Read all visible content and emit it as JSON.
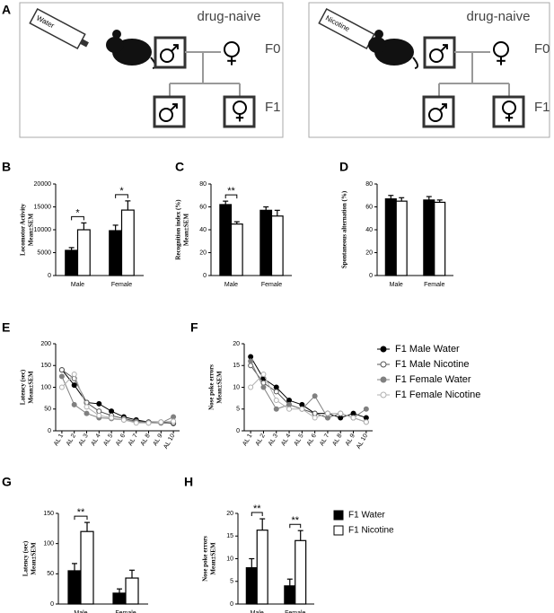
{
  "diagram": {
    "panel": "A",
    "groups": [
      {
        "bottle": "Water",
        "label": "drug-naive",
        "f0": "F0",
        "f1": "F1"
      },
      {
        "bottle": "Nicotine",
        "label": "drug-naive",
        "f0": "F0",
        "f1": "F1"
      }
    ]
  },
  "chart_data": [
    {
      "panel": "B",
      "type": "bar",
      "ylabel": [
        "Locomotor Activity",
        "Mean±SEM"
      ],
      "categories": [
        "Male",
        "Female"
      ],
      "series": [
        {
          "name": "F1 Water",
          "color": "#000000",
          "values": [
            5500,
            9800
          ],
          "errors": [
            600,
            1200
          ]
        },
        {
          "name": "F1 Nicotine",
          "color": "#ffffff",
          "values": [
            10000,
            14300
          ],
          "errors": [
            1500,
            2000
          ]
        }
      ],
      "ylim": [
        0,
        20000
      ],
      "yticks": [
        0,
        5000,
        10000,
        15000,
        20000
      ],
      "annotations": [
        {
          "text": "*",
          "category": 0
        },
        {
          "text": "*",
          "category": 1
        }
      ]
    },
    {
      "panel": "C",
      "type": "bar",
      "ylabel": [
        "Recognition index (%)",
        "Mean±SEM"
      ],
      "categories": [
        "Male",
        "Female"
      ],
      "series": [
        {
          "name": "F1 Water",
          "color": "#000000",
          "values": [
            62,
            57
          ],
          "errors": [
            3,
            3
          ]
        },
        {
          "name": "F1 Nicotine",
          "color": "#ffffff",
          "values": [
            45,
            52
          ],
          "errors": [
            2,
            5
          ]
        }
      ],
      "ylim": [
        0,
        80
      ],
      "yticks": [
        0,
        20,
        40,
        60,
        80
      ],
      "annotations": [
        {
          "text": "**",
          "category": 0
        }
      ]
    },
    {
      "panel": "D",
      "type": "bar",
      "ylabel": [
        "Spontaneous alternation (%)"
      ],
      "categories": [
        "Male",
        "Female"
      ],
      "series": [
        {
          "name": "F1 Water",
          "color": "#000000",
          "values": [
            67,
            66
          ],
          "errors": [
            3,
            3
          ]
        },
        {
          "name": "F1 Nicotine",
          "color": "#ffffff",
          "values": [
            65,
            64
          ],
          "errors": [
            3,
            2
          ]
        }
      ],
      "ylim": [
        0,
        80
      ],
      "yticks": [
        0,
        20,
        40,
        60,
        80
      ]
    },
    {
      "panel": "E",
      "type": "line",
      "ylabel": [
        "Latency (sec)",
        "Mean±SEM"
      ],
      "categories": [
        "AL 1",
        "AL 2",
        "AL 3",
        "AL 4",
        "AL 5",
        "AL 6",
        "AL 7",
        "AL 8",
        "AL 9",
        "AL 10"
      ],
      "series": [
        {
          "name": "F1 Male Water",
          "color": "#000000",
          "filled": true,
          "values": [
            140,
            105,
            65,
            62,
            45,
            32,
            25,
            20,
            20,
            17
          ]
        },
        {
          "name": "F1 Male Nicotine",
          "color": "#555555",
          "filled": false,
          "values": [
            140,
            120,
            65,
            45,
            35,
            28,
            22,
            20,
            18,
            18
          ]
        },
        {
          "name": "F1 Female Water",
          "color": "#808080",
          "filled": true,
          "values": [
            125,
            60,
            40,
            30,
            28,
            25,
            20,
            18,
            18,
            32
          ]
        },
        {
          "name": "F1 Female Nicotine",
          "color": "#b0b0b0",
          "filled": false,
          "values": [
            100,
            130,
            55,
            35,
            30,
            25,
            18,
            18,
            20,
            22
          ]
        }
      ],
      "ylim": [
        0,
        200
      ],
      "yticks": [
        0,
        50,
        100,
        150,
        200
      ]
    },
    {
      "panel": "F",
      "type": "line",
      "ylabel": [
        "Nose poke errors",
        "Mean±SEM"
      ],
      "legend": "right",
      "categories": [
        "AL 1",
        "AL 2",
        "AL 3",
        "AL 4",
        "AL 5",
        "AL 6",
        "AL 7",
        "AL 8",
        "AL 9",
        "AL 10"
      ],
      "series": [
        {
          "name": "F1 Male Water",
          "color": "#000000",
          "filled": true,
          "values": [
            17,
            12,
            10,
            7,
            6,
            4,
            4,
            3,
            4,
            3
          ]
        },
        {
          "name": "F1 Male Nicotine",
          "color": "#555555",
          "filled": false,
          "values": [
            15,
            11,
            9,
            6,
            5,
            4,
            3,
            4,
            3,
            2
          ]
        },
        {
          "name": "F1 Female Water",
          "color": "#808080",
          "filled": true,
          "values": [
            16,
            10,
            5,
            6,
            5,
            8,
            3,
            4,
            3,
            5
          ]
        },
        {
          "name": "F1 Female Nicotine",
          "color": "#b0b0b0",
          "filled": false,
          "values": [
            10,
            13,
            7,
            5,
            5,
            3,
            4,
            4,
            3,
            2
          ]
        }
      ],
      "ylim": [
        0,
        20
      ],
      "yticks": [
        0,
        5,
        10,
        15,
        20
      ]
    },
    {
      "panel": "G",
      "type": "bar",
      "ylabel": [
        "Latency (sec)",
        "Mean±SEM"
      ],
      "categories": [
        "Male",
        "Female"
      ],
      "series": [
        {
          "name": "F1 Water",
          "color": "#000000",
          "values": [
            55,
            18
          ],
          "errors": [
            12,
            7
          ]
        },
        {
          "name": "F1 Nicotine",
          "color": "#ffffff",
          "values": [
            120,
            43
          ],
          "errors": [
            15,
            13
          ]
        }
      ],
      "ylim": [
        0,
        150
      ],
      "yticks": [
        0,
        50,
        100,
        150
      ],
      "annotations": [
        {
          "text": "**",
          "category": 0
        }
      ]
    },
    {
      "panel": "H",
      "type": "bar",
      "ylabel": [
        "Nose poke errors",
        "Mean±SEM"
      ],
      "categories": [
        "Male",
        "Female"
      ],
      "legend": "right",
      "series": [
        {
          "name": "F1 Water",
          "color": "#000000",
          "values": [
            8,
            4
          ],
          "errors": [
            2,
            1.5
          ]
        },
        {
          "name": "F1 Nicotine",
          "color": "#ffffff",
          "values": [
            16.3,
            14
          ],
          "errors": [
            2.5,
            2.2
          ]
        }
      ],
      "ylim": [
        0,
        20
      ],
      "yticks": [
        0,
        5,
        10,
        15,
        20
      ],
      "annotations": [
        {
          "text": "**",
          "category": 0
        },
        {
          "text": "**",
          "category": 1
        }
      ]
    }
  ]
}
